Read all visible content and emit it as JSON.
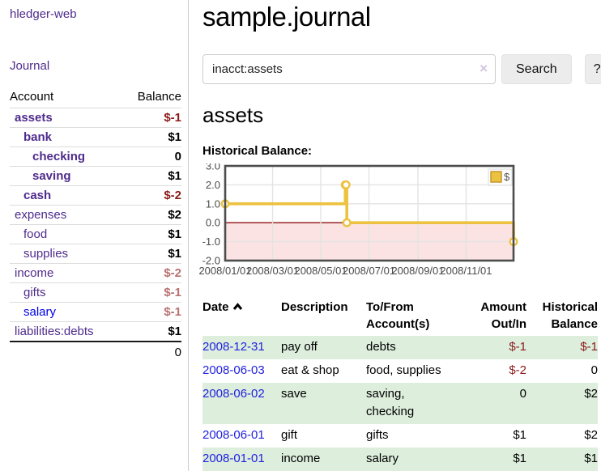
{
  "app": {
    "title": "hledger-web"
  },
  "sidebar": {
    "journal_link": "Journal",
    "accounts": {
      "account_header": "Account",
      "balance_header": "Balance",
      "rows": [
        {
          "name": "assets",
          "balance": "$-1",
          "level": 0,
          "in_query": true
        },
        {
          "name": "bank",
          "balance": "$1",
          "level": 1,
          "in_query": true
        },
        {
          "name": "checking",
          "balance": "0",
          "level": 2,
          "in_query": true
        },
        {
          "name": "saving",
          "balance": "$1",
          "level": 2,
          "in_query": true
        },
        {
          "name": "cash",
          "balance": "$-2",
          "level": 1,
          "in_query": true
        },
        {
          "name": "expenses",
          "balance": "$2",
          "level": 0
        },
        {
          "name": "food",
          "balance": "$1",
          "level": 1
        },
        {
          "name": "supplies",
          "balance": "$1",
          "level": 1
        },
        {
          "name": "income",
          "balance": "$-2",
          "level": 0,
          "soft_neg": true
        },
        {
          "name": "gifts",
          "balance": "$-1",
          "level": 1,
          "soft_neg": true
        },
        {
          "name": "salary",
          "balance": "$-1",
          "level": 1,
          "soft_neg": true,
          "unvisited": true
        },
        {
          "name": "liabilities:debts",
          "balance": "$1",
          "level": 0
        }
      ],
      "total": "0"
    }
  },
  "main": {
    "title": "sample.journal",
    "search": {
      "value": "inacct:assets",
      "clear_icon": "×",
      "button_label": "Search",
      "help_label": "?"
    },
    "account_heading": "assets",
    "chart_label": "Historical Balance:"
  },
  "chart_data": {
    "type": "line",
    "title": "Historical Balance",
    "step": true,
    "x": [
      "2008-01-01",
      "2008-06-01",
      "2008-06-02",
      "2008-06-03",
      "2008-12-31"
    ],
    "series": [
      {
        "name": "$",
        "values": [
          1.0,
          2.0,
          2.0,
          0.0,
          -1.0
        ]
      }
    ],
    "xrange": [
      "2008-01-01",
      "2008-12-31"
    ],
    "ylim": [
      -2.0,
      3.0
    ],
    "yticks": [
      "3.0",
      "2.0",
      "1.0",
      "0.0",
      "-1.0",
      "-2.0"
    ],
    "xticks": [
      "2008/01/01",
      "2008/03/01",
      "2008/05/01",
      "2008/07/01",
      "2008/09/01",
      "2008/11/01"
    ],
    "grid": true,
    "legend": [
      {
        "label": "$",
        "color": "#edc240"
      }
    ],
    "legend_position": "top-right",
    "colors": {
      "line": "#edc240",
      "marker_fill": "#ffffff",
      "negative_region": "#fbe3e3",
      "zero_line": "#8f1010",
      "border": "#4d4d4d",
      "gridline": "#e3e3e3",
      "tick_text": "#4a4a4a"
    }
  },
  "register": {
    "headers": {
      "date": "Date",
      "description": "Description",
      "account": "To/From Account(s)",
      "amount": "Amount Out/In",
      "balance": "Historical Balance"
    },
    "sort": {
      "column": "date",
      "direction": "ascending"
    },
    "rows": [
      {
        "date": "2008-12-31",
        "description": "pay off",
        "accounts": "debts",
        "amount": "$-1",
        "balance": "$-1"
      },
      {
        "date": "2008-06-03",
        "description": "eat & shop",
        "accounts": "food, supplies",
        "amount": "$-2",
        "balance": "0"
      },
      {
        "date": "2008-06-02",
        "description": "save",
        "accounts": "saving, checking",
        "amount": "0",
        "balance": "$2"
      },
      {
        "date": "2008-06-01",
        "description": "gift",
        "accounts": "gifts",
        "amount": "$1",
        "balance": "$2"
      },
      {
        "date": "2008-01-01",
        "description": "income",
        "accounts": "salary",
        "amount": "$1",
        "balance": "$1"
      }
    ]
  }
}
